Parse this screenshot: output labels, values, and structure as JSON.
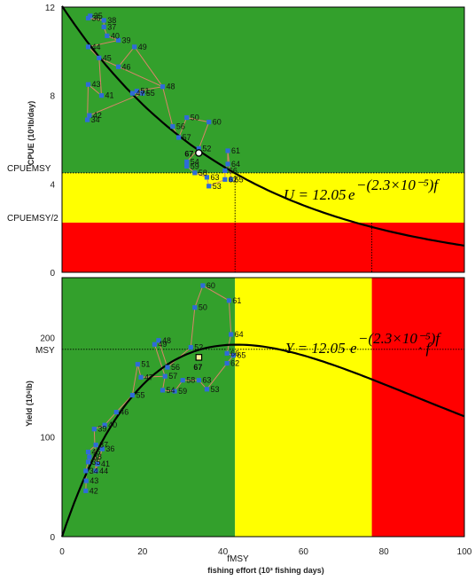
{
  "chart_data": [
    {
      "type": "scatter",
      "panel": "top",
      "title": "",
      "ylabel": "CPUE (10³lb/day)",
      "xlabel": "",
      "xlim": [
        0,
        100
      ],
      "ylim": [
        0,
        12
      ],
      "yticks": [
        0,
        4,
        8,
        12
      ],
      "xticks": [
        0,
        20,
        40,
        60,
        80,
        100
      ],
      "bands": [
        {
          "from": 0,
          "to": 2.25,
          "color": "#ff0000"
        },
        {
          "from": 2.25,
          "to": 4.5,
          "color": "#ffff00"
        },
        {
          "from": 4.5,
          "to": 12,
          "color": "#33a02c"
        }
      ],
      "ref_lines": {
        "cpue_msy": 4.5,
        "cpue_msy_half": 2.25,
        "f_msy": 43,
        "f_limit": 77
      },
      "ref_labels": {
        "cpue_msy": "CPUEMSY",
        "cpue_msy_half": "CPUEMSY/2"
      },
      "equation": {
        "lhs": "U = 12.05",
        "base": "e",
        "exponent": "−(2.3×10⁻⁵)f"
      },
      "curve": {
        "a": 12.05,
        "b": 0.023
      },
      "points": [
        {
          "label": "34",
          "x": 6.3,
          "y": 6.9
        },
        {
          "label": "35",
          "x": 7.0,
          "y": 11.6
        },
        {
          "label": "36",
          "x": 6.5,
          "y": 11.5
        },
        {
          "label": "37",
          "x": 10.4,
          "y": 11.1
        },
        {
          "label": "38",
          "x": 10.4,
          "y": 11.4
        },
        {
          "label": "39",
          "x": 14.0,
          "y": 10.5
        },
        {
          "label": "40",
          "x": 11.2,
          "y": 10.7
        },
        {
          "label": "41",
          "x": 9.8,
          "y": 8.0
        },
        {
          "label": "42",
          "x": 6.8,
          "y": 7.1
        },
        {
          "label": "43",
          "x": 6.5,
          "y": 8.5
        },
        {
          "label": "44",
          "x": 6.5,
          "y": 10.2
        },
        {
          "label": "45",
          "x": 9.2,
          "y": 9.7
        },
        {
          "label": "46",
          "x": 14.0,
          "y": 9.3
        },
        {
          "label": "47",
          "x": 17.5,
          "y": 8.1
        },
        {
          "label": "48",
          "x": 25.0,
          "y": 8.4
        },
        {
          "label": "49",
          "x": 18.0,
          "y": 10.2
        },
        {
          "label": "50",
          "x": 31.0,
          "y": 7.0
        },
        {
          "label": "51",
          "x": 18.6,
          "y": 8.2
        },
        {
          "label": "52",
          "x": 34.0,
          "y": 5.6
        },
        {
          "label": "53",
          "x": 36.5,
          "y": 3.9
        },
        {
          "label": "54",
          "x": 31.0,
          "y": 5.0
        },
        {
          "label": "55",
          "x": 20.0,
          "y": 8.1
        },
        {
          "label": "56",
          "x": 27.5,
          "y": 6.6
        },
        {
          "label": "57",
          "x": 29.0,
          "y": 6.1
        },
        {
          "label": "58",
          "x": 33.0,
          "y": 4.5
        },
        {
          "label": "59",
          "x": 31.0,
          "y": 4.8
        },
        {
          "label": "60",
          "x": 36.5,
          "y": 6.8
        },
        {
          "label": "61",
          "x": 41.2,
          "y": 5.5
        },
        {
          "label": "62",
          "x": 40.5,
          "y": 4.2
        },
        {
          "label": "63",
          "x": 36.0,
          "y": 4.3
        },
        {
          "label": "64",
          "x": 41.2,
          "y": 4.9
        },
        {
          "label": "65",
          "x": 42.0,
          "y": 4.2
        },
        {
          "label": "66",
          "x": 40.5,
          "y": 4.6
        }
      ],
      "highlight": {
        "label": "67",
        "x": 34.0,
        "y": 5.4
      },
      "path_order": [
        "35",
        "36",
        "38",
        "37",
        "40",
        "39",
        "44",
        "45",
        "46",
        "49",
        "48",
        "51",
        "47",
        "55",
        "42",
        "34",
        "43",
        "41",
        "45",
        "48",
        "56",
        "57",
        "50",
        "60",
        "52",
        "54",
        "59",
        "58",
        "63",
        "53",
        "62",
        "66",
        "64",
        "61",
        "65"
      ]
    },
    {
      "type": "scatter",
      "panel": "bottom",
      "title": "",
      "ylabel": "Yield (10⁶lb)",
      "xlabel": "fishing effort (10³ fishing days)",
      "xlim": [
        0,
        100
      ],
      "ylim": [
        0,
        260
      ],
      "yticks": [
        0,
        100,
        200
      ],
      "xticks": [
        0,
        20,
        40,
        60,
        80,
        100
      ],
      "xband_colors": [
        {
          "from": 0,
          "to": 43,
          "color": "#33a02c"
        },
        {
          "from": 43,
          "to": 77,
          "color": "#ffff00"
        },
        {
          "from": 77,
          "to": 100,
          "color": "#ff0000"
        }
      ],
      "ref_lines": {
        "msy": 188,
        "f_msy": 43
      },
      "ref_labels": {
        "msy": "MSY",
        "f_msy": "fMSY"
      },
      "equation": {
        "lhs": "Y = 12.05",
        "base": "e",
        "exponent": "−(2.3×10⁻⁵)f",
        "tail": "· f"
      },
      "points": [
        {
          "label": "34",
          "x": 5.9,
          "y": 66
        },
        {
          "label": "35",
          "x": 6.5,
          "y": 75
        },
        {
          "label": "36",
          "x": 10.0,
          "y": 88
        },
        {
          "label": "37",
          "x": 8.4,
          "y": 92
        },
        {
          "label": "38",
          "x": 6.8,
          "y": 80
        },
        {
          "label": "39",
          "x": 8.0,
          "y": 108
        },
        {
          "label": "40",
          "x": 10.6,
          "y": 112
        },
        {
          "label": "41",
          "x": 8.8,
          "y": 73
        },
        {
          "label": "42",
          "x": 5.9,
          "y": 46
        },
        {
          "label": "43",
          "x": 6.0,
          "y": 56
        },
        {
          "label": "44",
          "x": 8.4,
          "y": 66
        },
        {
          "label": "45",
          "x": 6.5,
          "y": 85
        },
        {
          "label": "46",
          "x": 13.5,
          "y": 125
        },
        {
          "label": "47",
          "x": 19.6,
          "y": 160
        },
        {
          "label": "48",
          "x": 24.0,
          "y": 197
        },
        {
          "label": "49",
          "x": 23.0,
          "y": 193
        },
        {
          "label": "50",
          "x": 33.0,
          "y": 230
        },
        {
          "label": "51",
          "x": 18.8,
          "y": 173
        },
        {
          "label": "52",
          "x": 32.0,
          "y": 190
        },
        {
          "label": "53",
          "x": 36.0,
          "y": 148
        },
        {
          "label": "54",
          "x": 25.0,
          "y": 147
        },
        {
          "label": "55",
          "x": 17.5,
          "y": 142
        },
        {
          "label": "56",
          "x": 26.2,
          "y": 170
        },
        {
          "label": "57",
          "x": 25.6,
          "y": 161
        },
        {
          "label": "58",
          "x": 30.0,
          "y": 157
        },
        {
          "label": "59",
          "x": 28.0,
          "y": 146
        },
        {
          "label": "60",
          "x": 35.0,
          "y": 252
        },
        {
          "label": "61",
          "x": 41.5,
          "y": 237
        },
        {
          "label": "62",
          "x": 41.0,
          "y": 174
        },
        {
          "label": "63",
          "x": 34.0,
          "y": 157
        },
        {
          "label": "64",
          "x": 42.0,
          "y": 203
        },
        {
          "label": "65",
          "x": 42.6,
          "y": 182
        },
        {
          "label": "66",
          "x": 41.0,
          "y": 184
        }
      ],
      "highlight": {
        "label": "67",
        "x": 34.0,
        "y": 180
      },
      "path_order": [
        "42",
        "43",
        "34",
        "35",
        "38",
        "45",
        "37",
        "36",
        "41",
        "44",
        "39",
        "40",
        "46",
        "55",
        "51",
        "47",
        "57",
        "49",
        "48",
        "56",
        "52",
        "50",
        "60",
        "61",
        "64",
        "66",
        "65",
        "62",
        "53",
        "63",
        "58",
        "59",
        "54",
        "57"
      ]
    }
  ]
}
